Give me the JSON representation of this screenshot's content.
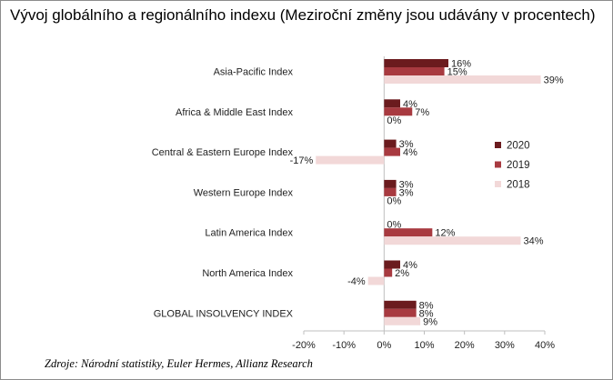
{
  "title": "Vývoj globálního a regionálního indexu (Meziroční změny jsou udávány v procentech)",
  "source": "Zdroje: Národní statistiky, Euler Hermes, Allianz Research",
  "colors": {
    "2020": "#6b1b1e",
    "2019": "#a83a40",
    "2018": "#f2d8d8",
    "axis": "#bfbfbf",
    "text": "#222222"
  },
  "chart_data": {
    "type": "bar",
    "orientation": "horizontal",
    "categories": [
      "Asia-Pacific Index",
      "Africa & Middle East Index",
      "Central & Eastern Europe Index",
      "Western Europe Index",
      "Latin America Index",
      "North America Index",
      "GLOBAL INSOLVENCY INDEX"
    ],
    "series": [
      {
        "name": "2020",
        "values": [
          16,
          4,
          3,
          3,
          0,
          4,
          8
        ],
        "labels": [
          "16%",
          "4%",
          "3%",
          "3%",
          "0%",
          "4%",
          "8%"
        ]
      },
      {
        "name": "2019",
        "values": [
          15,
          7,
          4,
          3,
          12,
          2,
          8
        ],
        "labels": [
          "15%",
          "7%",
          "4%",
          "3%",
          "12%",
          "2%",
          "8%"
        ]
      },
      {
        "name": "2018",
        "values": [
          39,
          0,
          -17,
          0,
          34,
          -4,
          9
        ],
        "labels": [
          "39%",
          "0%",
          "-17%",
          "0%",
          "34%",
          "-4%",
          "9%"
        ]
      }
    ],
    "xlim": [
      -20,
      40
    ],
    "xticks": [
      -20,
      -10,
      0,
      10,
      20,
      30,
      40
    ],
    "xtick_labels": [
      "-20%",
      "-10%",
      "0%",
      "10%",
      "20%",
      "30%",
      "40%"
    ],
    "legend": [
      "2020",
      "2019",
      "2018"
    ],
    "legend_position": "right",
    "grid": false
  }
}
